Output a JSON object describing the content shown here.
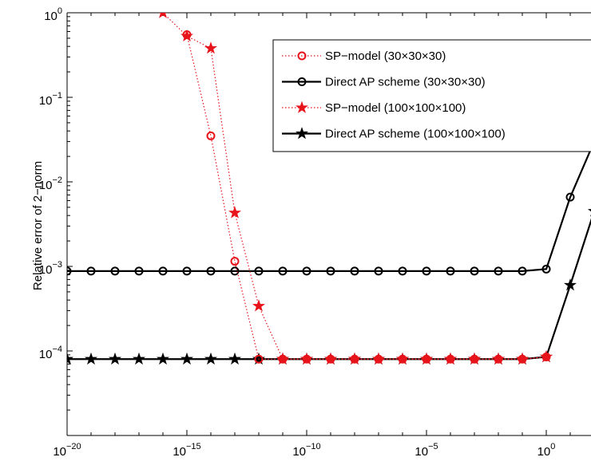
{
  "chart_data": {
    "type": "line",
    "title": "",
    "xlabel": "",
    "ylabel": "Relative error of 2−norm",
    "x_scale": "log",
    "y_scale": "log",
    "xlim": [
      1e-20,
      100
    ],
    "ylim": [
      1e-05,
      1
    ],
    "x_ticks": [
      {
        "base": "10",
        "exp": "−20",
        "value": 1e-20
      },
      {
        "base": "10",
        "exp": "−15",
        "value": 1e-15
      },
      {
        "base": "10",
        "exp": "−10",
        "value": 1e-10
      },
      {
        "base": "10",
        "exp": "−5",
        "value": 1e-05
      },
      {
        "base": "10",
        "exp": "0",
        "value": 1
      }
    ],
    "y_ticks": [
      {
        "base": "10",
        "exp": "0",
        "value": 1
      },
      {
        "base": "10",
        "exp": "−1",
        "value": 0.1
      },
      {
        "base": "10",
        "exp": "−2",
        "value": 0.01
      },
      {
        "base": "10",
        "exp": "−3",
        "value": 0.001
      },
      {
        "base": "10",
        "exp": "−4",
        "value": 0.0001
      }
    ],
    "legend_position": "top-right",
    "series": [
      {
        "name": "SP−model (30×30×30)",
        "color": "#e8141b",
        "line": "dotted",
        "marker": "circle",
        "x": [
          1e-15,
          1e-14,
          1e-13,
          1e-12,
          1e-11,
          1e-10,
          1e-09,
          1e-08,
          1e-07,
          1e-06,
          1e-05,
          0.0001,
          0.001,
          0.01,
          0.1,
          1
        ],
        "y": [
          0.55,
          0.035,
          0.00115,
          8e-05,
          8e-05,
          8e-05,
          8e-05,
          8e-05,
          8e-05,
          8e-05,
          8e-05,
          8e-05,
          8e-05,
          8e-05,
          8e-05,
          8.5e-05
        ]
      },
      {
        "name": "Direct AP scheme (30×30×30)",
        "color": "#000000",
        "line": "solid",
        "marker": "circle",
        "x": [
          1e-20,
          1e-19,
          1e-18,
          1e-17,
          1e-16,
          1e-15,
          1e-14,
          1e-13,
          1e-12,
          1e-11,
          1e-10,
          1e-09,
          1e-08,
          1e-07,
          1e-06,
          1e-05,
          0.0001,
          0.001,
          0.01,
          0.1,
          1,
          10,
          100
        ],
        "y": [
          0.00088,
          0.00088,
          0.00088,
          0.00088,
          0.00088,
          0.00088,
          0.00088,
          0.00088,
          0.00088,
          0.00088,
          0.00088,
          0.00088,
          0.00088,
          0.00088,
          0.00088,
          0.00088,
          0.00088,
          0.00088,
          0.00088,
          0.00088,
          0.00093,
          0.0066,
          0.03
        ]
      },
      {
        "name": "SP−model (100×100×100)",
        "color": "#e8141b",
        "line": "dotted",
        "marker": "star",
        "x": [
          1e-16,
          1e-15,
          1e-14,
          1e-13,
          1e-12,
          1e-11,
          1e-10,
          1e-09,
          1e-08,
          1e-07,
          1e-06,
          1e-05,
          0.0001,
          0.001,
          0.01,
          0.1,
          1
        ],
        "y": [
          1.0,
          0.53,
          0.38,
          0.0043,
          0.00034,
          8e-05,
          8e-05,
          8e-05,
          8e-05,
          8e-05,
          8e-05,
          8e-05,
          8e-05,
          8e-05,
          8e-05,
          8e-05,
          8.5e-05
        ]
      },
      {
        "name": "Direct AP scheme (100×100×100)",
        "color": "#000000",
        "line": "solid",
        "marker": "star",
        "x": [
          1e-20,
          1e-19,
          1e-18,
          1e-17,
          1e-16,
          1e-15,
          1e-14,
          1e-13,
          1e-12,
          1e-11,
          1e-10,
          1e-09,
          1e-08,
          1e-07,
          1e-06,
          1e-05,
          0.0001,
          0.001,
          0.01,
          0.1,
          1,
          10,
          100
        ],
        "y": [
          8e-05,
          8e-05,
          8e-05,
          8e-05,
          8e-05,
          8e-05,
          8e-05,
          8e-05,
          8e-05,
          8e-05,
          8e-05,
          8e-05,
          8e-05,
          8e-05,
          8e-05,
          8e-05,
          8e-05,
          8e-05,
          8e-05,
          8e-05,
          8.5e-05,
          0.0006,
          0.0045
        ]
      }
    ]
  }
}
